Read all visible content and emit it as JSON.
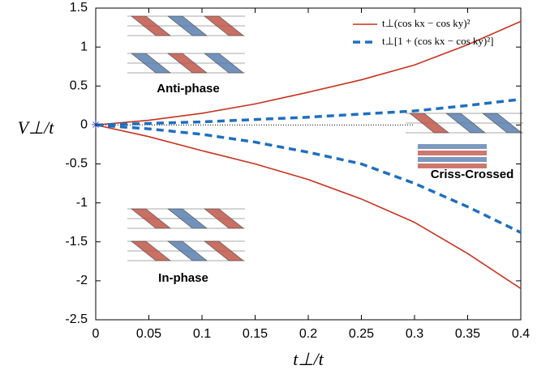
{
  "chart_data": {
    "type": "line",
    "x_label": "t⊥/t",
    "y_label": "V⊥/t",
    "x": [
      0,
      0.05,
      0.1,
      0.15,
      0.2,
      0.25,
      0.3,
      0.35,
      0.4
    ],
    "series": [
      {
        "name": "t⊥(cos kx − cos ky)²",
        "color": "#c8321e",
        "dashed": false,
        "values": [
          0,
          0.06,
          0.15,
          0.27,
          0.42,
          0.58,
          0.77,
          1.03,
          1.33
        ],
        "lower": [
          0,
          -0.15,
          -0.33,
          -0.5,
          -0.7,
          -0.95,
          -1.25,
          -1.65,
          -2.1
        ]
      },
      {
        "name": "t⊥[1 + (cos kx − cos ky)²]",
        "color": "#1f6fbf",
        "dashed": true,
        "values": [
          0,
          0.02,
          0.04,
          0.07,
          0.1,
          0.14,
          0.18,
          0.25,
          0.33
        ],
        "lower": [
          0,
          -0.05,
          -0.12,
          -0.22,
          -0.35,
          -0.5,
          -0.75,
          -1.05,
          -1.38
        ]
      }
    ],
    "annotations": [
      "Anti-phase",
      "Criss-Crossed",
      "In-phase"
    ],
    "xlim": [
      0,
      0.4
    ],
    "xticks": [
      0,
      0.05,
      0.1,
      0.15,
      0.2,
      0.25,
      0.3,
      0.35,
      0.4
    ],
    "ylim": [
      -2.5,
      1.5
    ],
    "yticks": [
      1.5,
      1,
      0.5,
      0,
      -0.5,
      -1,
      -1.5,
      -2,
      -2.5
    ],
    "legend_position": "upper right"
  }
}
